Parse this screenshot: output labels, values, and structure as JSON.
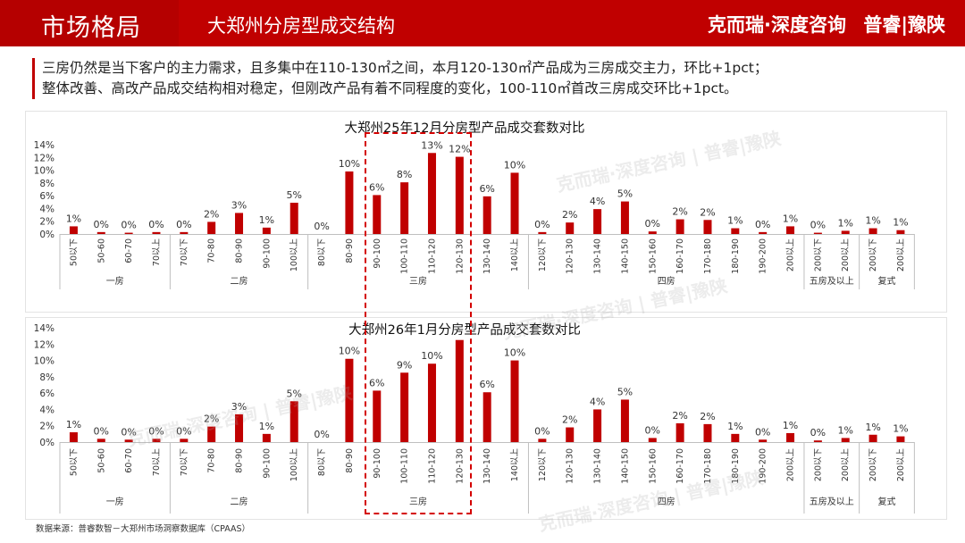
{
  "header": {
    "section_title": "市场格局",
    "page_title": "大郑州分房型成交结构",
    "brand_left": "克而瑞·深度咨询",
    "brand_right": "普睿|豫陕"
  },
  "summary": {
    "line1": "三房仍然是当下客户的主力需求，且多集中在110-130㎡之间，本月120-130㎡产品成为三房成交主力，环比+1pct；",
    "line2": "整体改善、高改产品成交结构相对稳定，但刚改产品有着不同程度的变化，100-110㎡首改三房成交环比+1pct。"
  },
  "source": "数据来源：普睿数智－大郑州市场洞察数据库（CPAAS）",
  "colors": {
    "brand": "#c00000",
    "bar": "#c00000",
    "highlight": "#d40000"
  },
  "chart_data": [
    {
      "type": "bar",
      "title": "大郑州25年12月分房型产品成交套数对比",
      "ylim": [
        0,
        14
      ],
      "yticks": [
        "0%",
        "2%",
        "4%",
        "6%",
        "8%",
        "10%",
        "12%",
        "14%"
      ],
      "groups": [
        {
          "name": "一房",
          "categories": [
            "50以下",
            "50-60",
            "60-70",
            "70以上"
          ],
          "values": [
            1.2,
            0.3,
            0.2,
            0.3
          ],
          "labels": [
            "1%",
            "0%",
            "0%",
            "0%"
          ]
        },
        {
          "name": "二房",
          "categories": [
            "70以下",
            "70-80",
            "80-90",
            "90-100",
            "100以上"
          ],
          "values": [
            0.3,
            1.9,
            3.3,
            1.0,
            4.9
          ],
          "labels": [
            "0%",
            "2%",
            "3%",
            "1%",
            "5%"
          ]
        },
        {
          "name": "三房",
          "categories": [
            "80以下",
            "80-90",
            "90-100",
            "100-110",
            "110-120",
            "120-130",
            "130-140",
            "140以上"
          ],
          "values": [
            0.0,
            9.8,
            6.1,
            8.1,
            12.7,
            12.1,
            5.9,
            9.6
          ],
          "labels": [
            "0%",
            "10%",
            "6%",
            "8%",
            "13%",
            "12%",
            "6%",
            "10%"
          ]
        },
        {
          "name": "四房",
          "categories": [
            "120以下",
            "120-130",
            "130-140",
            "140-150",
            "150-160",
            "160-170",
            "170-180",
            "180-190",
            "190-200",
            "200以上"
          ],
          "values": [
            0.3,
            1.8,
            3.9,
            5.1,
            0.4,
            2.3,
            2.2,
            0.9,
            0.3,
            1.2
          ],
          "labels": [
            "0%",
            "2%",
            "4%",
            "5%",
            "0%",
            "2%",
            "2%",
            "1%",
            "0%",
            "1%"
          ]
        },
        {
          "name": "五房及以上",
          "categories": [
            "200以下",
            "200以上"
          ],
          "values": [
            0.2,
            0.5
          ],
          "labels": [
            "0%",
            "1%"
          ]
        },
        {
          "name": "复式",
          "categories": [
            "200以下",
            "200以上"
          ],
          "values": [
            0.9,
            0.6
          ],
          "labels": [
            "1%",
            "1%"
          ]
        }
      ]
    },
    {
      "type": "bar",
      "title": "大郑州26年1月分房型产品成交套数对比",
      "ylim": [
        0,
        14
      ],
      "yticks": [
        "0%",
        "2%",
        "4%",
        "6%",
        "8%",
        "10%",
        "12%",
        "14%"
      ],
      "groups": [
        {
          "name": "一房",
          "categories": [
            "50以下",
            "50-60",
            "60-70",
            "70以上"
          ],
          "values": [
            1.2,
            0.4,
            0.3,
            0.4
          ],
          "labels": [
            "1%",
            "0%",
            "0%",
            "0%"
          ]
        },
        {
          "name": "二房",
          "categories": [
            "70以下",
            "70-80",
            "80-90",
            "90-100",
            "100以上"
          ],
          "values": [
            0.4,
            1.9,
            3.4,
            1.0,
            5.0
          ],
          "labels": [
            "0%",
            "2%",
            "3%",
            "1%",
            "5%"
          ]
        },
        {
          "name": "三房",
          "categories": [
            "80以下",
            "80-90",
            "90-100",
            "100-110",
            "110-120",
            "120-130",
            "130-140",
            "140以上"
          ],
          "values": [
            0.0,
            10.2,
            6.3,
            8.5,
            9.6,
            12.5,
            6.1,
            10.0
          ],
          "labels": [
            "0%",
            "10%",
            "6%",
            "9%",
            "10%",
            "",
            "6%",
            "10%"
          ]
        },
        {
          "name": "四房",
          "categories": [
            "120以下",
            "120-130",
            "130-140",
            "140-150",
            "150-160",
            "160-170",
            "170-180",
            "180-190",
            "190-200",
            "200以上"
          ],
          "values": [
            0.4,
            1.8,
            4.0,
            5.2,
            0.5,
            2.3,
            2.2,
            1.0,
            0.3,
            1.1
          ],
          "labels": [
            "0%",
            "2%",
            "4%",
            "5%",
            "0%",
            "2%",
            "2%",
            "1%",
            "0%",
            "1%"
          ]
        },
        {
          "name": "五房及以上",
          "categories": [
            "200以下",
            "200以上"
          ],
          "values": [
            0.2,
            0.5
          ],
          "labels": [
            "0%",
            "1%"
          ]
        },
        {
          "name": "复式",
          "categories": [
            "200以下",
            "200以上"
          ],
          "values": [
            0.9,
            0.7
          ],
          "labels": [
            "1%",
            "1%"
          ]
        }
      ]
    }
  ]
}
